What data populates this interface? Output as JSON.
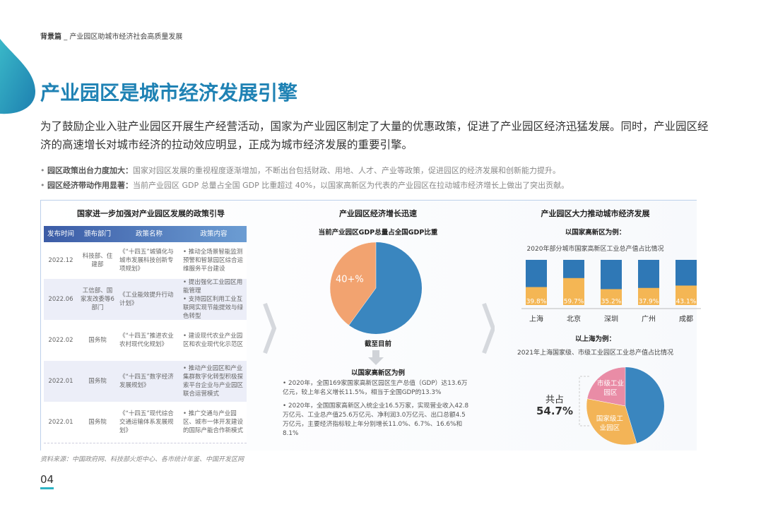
{
  "header": {
    "section": "背景篇",
    "subtitle": "_ 产业园区助城市经济社会高质量发展"
  },
  "title": "产业园区是城市经济发展引擎",
  "intro": "为了鼓励企业入驻产业园区开展生产经营活动，国家为产业园区制定了大量的优惠政策，促进了产业园区经济迅猛发展。同时，产业园区经济的高速增长对城市经济的拉动效应明显，正成为城市经济发展的重要引擎。",
  "highlights": [
    {
      "label": "园区政策出台力度加大：",
      "text": "国家对园区发展的重视程度逐渐增加，不断出台包括财政、用地、人才、产业等政策，促进园区的经济发展和创新能力提升。"
    },
    {
      "label": "园区经济带动作用显著：",
      "text": "当前产业园区 GDP 总量占全国 GDP 比重超过 40%，以国家高新区为代表的产业园区在拉动城市经济增长上做出了突出贡献。"
    }
  ],
  "policy_table": {
    "title": "国家进一步加强对产业园区发展的政策引导",
    "columns": [
      "发布时间",
      "颁布部门",
      "政策名称",
      "政策内容"
    ],
    "rows": [
      [
        "2022.12",
        "科技部、住建部",
        "《“十四五”城镇化与城市发展科技创新专项规划》",
        [
          "推动全场景智能监测预警和智慧园区综合运维服务平台建设"
        ]
      ],
      [
        "2022.06",
        "工信部、国家发改委等6部门",
        "《工业能效提升行动计划》",
        [
          "提出强化工业园区用能管理",
          "支持园区利用工业互联网实现节能提效与绿色转型"
        ]
      ],
      [
        "2022.02",
        "国务院",
        "《“十四五”推进农业农村现代化规划》",
        [
          "建设现代农业产业园区和农业现代化示范区"
        ]
      ],
      [
        "2022.01",
        "国务院",
        "《“十四五”数字经济发展规划》",
        [
          "推动产业园区和产业集群数字化转型积极探索平台企业与产业园区联合运营模式"
        ]
      ],
      [
        "2022.01",
        "国务院",
        "《“十四五”现代综合交通运输体系发展规划》",
        [
          "推广交通与产业园区、城市一体开发建设的国际产能合作新模式"
        ]
      ]
    ]
  },
  "growth": {
    "title": "产业园区经济增长迅速",
    "note": "截至目前",
    "example_title": "以国家高新区为例",
    "points": [
      "2020年，全国169家国家高新区园区生产总值（GDP）达13.6万亿元，较上年名义增长11.5%，相当于全国GDP的13.3%",
      "2020年，全国国家高新区入统企业16.5万家，实现营业收入42.8万亿元、工业总产值25.6万亿元、净利润3.0万亿元、出口总额4.5万亿元，主要经济指标较上年分别增长11.0%、6.7%、16.6%和8.1%"
    ]
  },
  "city_impact": {
    "title": "产业园区大力推动城市经济发展",
    "example_1": "以国家高新区为例：",
    "example_2": "以上海为例："
  },
  "chart_data": [
    {
      "type": "pie",
      "title": "当前产业园区GDP总量占全国GDP比重",
      "values": [
        40
      ],
      "value_labels": [
        "40+%"
      ],
      "colors": [
        "#f2a370"
      ],
      "rest_color": "#3a86bf"
    },
    {
      "type": "bar",
      "title": "2020年部分城市国家高新区工业总产值占比情况",
      "categories": [
        "上海",
        "北京",
        "深圳",
        "广州",
        "成都"
      ],
      "values": [
        39.8,
        59.7,
        35.2,
        37.9,
        43.1
      ],
      "value_labels": [
        "39.8%",
        "59.7%",
        "35.2%",
        "37.9%",
        "43.1%"
      ],
      "ylim": [
        0,
        100
      ],
      "color": "#f4b654",
      "track_color": "#2f78b6"
    },
    {
      "type": "pie",
      "title": "2021年上海国家级、市级工业园区工业总产值占比情况",
      "categories": [
        "市级工业园区",
        "国家级工业园区"
      ],
      "values": [
        22.0,
        32.7
      ],
      "colors": [
        "#e98ca6",
        "#f3b457"
      ],
      "rest_color": "#3a86bf",
      "annotation": "共占",
      "total": 54.7,
      "total_label": "54.7%"
    }
  ],
  "source": "资料来源：中国政府网、科技部火炬中心、各市统计年鉴、中国开发区网",
  "page_number": "04"
}
